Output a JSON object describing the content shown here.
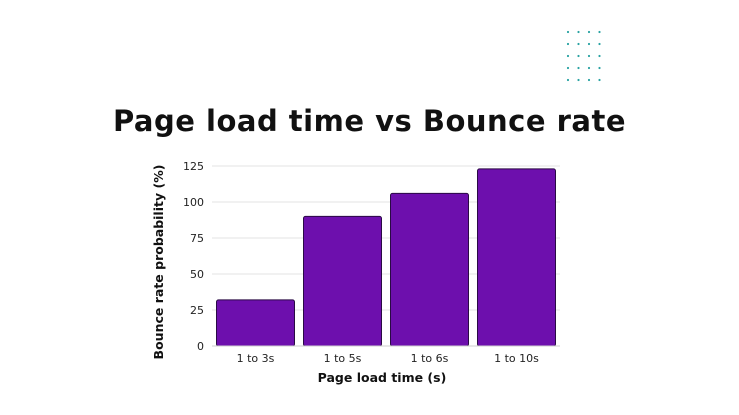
{
  "chart_data": {
    "type": "bar",
    "title": "Page load time vs Bounce rate",
    "xlabel": "Page load time (s)",
    "ylabel": "Bounce rate probability (%)",
    "categories": [
      "1 to 3s",
      "1 to 5s",
      "1 to 6s",
      "1 to 10s"
    ],
    "values": [
      32,
      90,
      106,
      123
    ],
    "ylim": [
      0,
      125
    ],
    "yticks": [
      0,
      25,
      50,
      75,
      100,
      125
    ],
    "grid": true,
    "bar_color": "#6d0fad",
    "bar_stroke": "#2a0a45"
  },
  "decorations": {
    "dot_grid_color": "#2aa3a3"
  }
}
